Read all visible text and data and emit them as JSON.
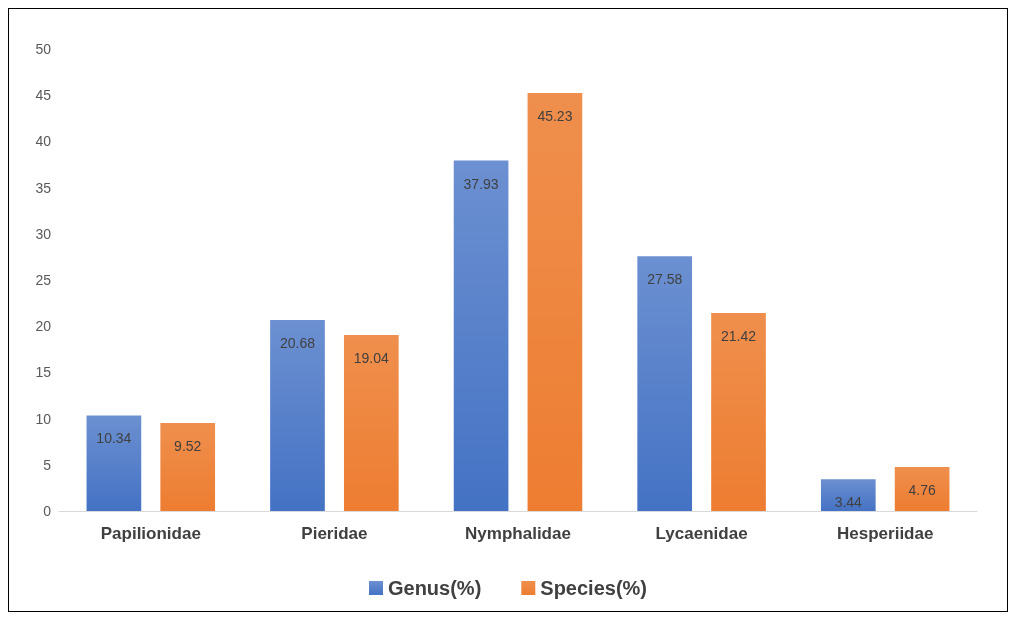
{
  "chart_data": {
    "type": "bar",
    "categories": [
      "Papilionidae",
      "Pieridae",
      "Nymphalidae",
      "Lycaenidae",
      "Hesperiidae"
    ],
    "series": [
      {
        "name": "Genus(%)",
        "color": "#4472c4",
        "values": [
          10.34,
          20.68,
          37.93,
          27.58,
          3.44
        ]
      },
      {
        "name": "Species(%)",
        "color": "#ed7d31",
        "values": [
          9.52,
          19.04,
          45.23,
          21.42,
          4.76
        ]
      }
    ],
    "ylim": [
      0,
      50
    ],
    "yticks": [
      0,
      5,
      10,
      15,
      20,
      25,
      30,
      35,
      40,
      45,
      50
    ],
    "grid": false,
    "legend": "bottom",
    "data_labels": true
  }
}
